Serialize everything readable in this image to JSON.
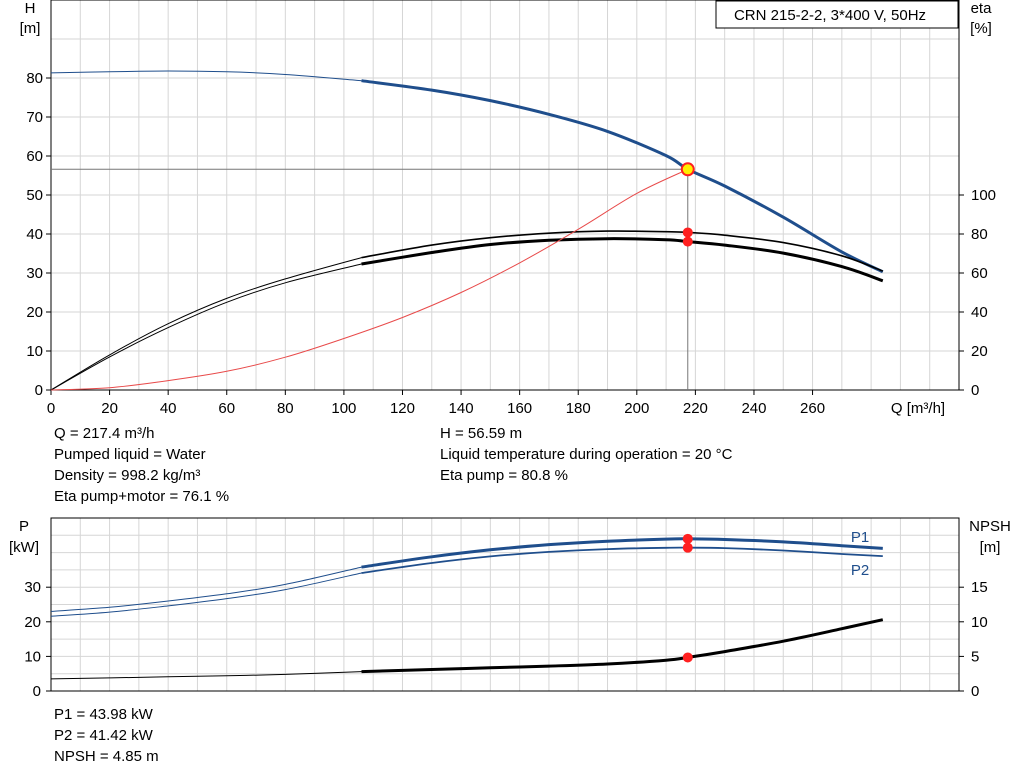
{
  "chart_data": [
    {
      "type": "line",
      "title": "CRN 215-2-2, 3*400 V, 50Hz",
      "x_axis": {
        "label": "Q [m³/h]",
        "range": [
          0,
          310
        ],
        "ticks": [
          "0",
          "20",
          "40",
          "60",
          "80",
          "100",
          "120",
          "140",
          "160",
          "180",
          "200",
          "220",
          "240",
          "260"
        ]
      },
      "y_left": {
        "label_line1": "H",
        "label_line2": "[m]",
        "range": [
          0,
          100
        ],
        "ticks": [
          "0",
          "10",
          "20",
          "30",
          "40",
          "50",
          "60",
          "70",
          "80"
        ]
      },
      "y_right": {
        "label_line1": "eta",
        "label_line2": "[%]",
        "range": [
          0,
          200
        ],
        "ticks": [
          "0",
          "20",
          "40",
          "60",
          "80",
          "100"
        ]
      },
      "grid": true,
      "series": [
        {
          "key": "H",
          "axis": "left",
          "color": "#1f4e8c",
          "x": [
            0,
            20,
            40,
            60,
            80,
            106,
            130,
            150,
            170,
            190,
            210,
            217.4,
            230,
            250,
            270,
            284
          ],
          "y": [
            81.3,
            81.6,
            81.8,
            81.6,
            80.9,
            79.3,
            76.9,
            74.2,
            70.7,
            66.3,
            60.1,
            56.59,
            52.3,
            44.3,
            35.4,
            30.3
          ]
        },
        {
          "key": "eta_pump",
          "axis": "right",
          "color": "#000000",
          "x": [
            0,
            20,
            40,
            60,
            80,
            106,
            130,
            150,
            170,
            190,
            210,
            217.4,
            230,
            250,
            270,
            284
          ],
          "y": [
            0,
            18,
            34,
            47,
            57,
            67.9,
            74.3,
            78.1,
            80.4,
            81.5,
            81.2,
            80.8,
            79.4,
            75.6,
            68.8,
            61
          ]
        },
        {
          "key": "eta_total",
          "axis": "right",
          "color": "#000000",
          "x": [
            0,
            20,
            40,
            60,
            80,
            106,
            130,
            150,
            170,
            190,
            210,
            217.4,
            230,
            250,
            270,
            284
          ],
          "y": [
            0,
            17,
            32,
            45,
            55,
            64.6,
            70.5,
            74.6,
            76.8,
            77.6,
            77.1,
            76.1,
            74.3,
            70.2,
            63.3,
            56
          ]
        },
        {
          "key": "system",
          "axis": "left",
          "color": "#e84a4a",
          "x": [
            0,
            20,
            40,
            60,
            80,
            100,
            120,
            140,
            160,
            180,
            200,
            217.4
          ],
          "y": [
            0,
            0.6,
            2.4,
            4.8,
            8.4,
            13.2,
            18.6,
            25,
            32.6,
            41.2,
            50.4,
            56.59
          ]
        }
      ],
      "operating_point": {
        "Q": 217.4,
        "H": 56.59,
        "eta_pump": 80.8,
        "eta_total": 76.1
      }
    },
    {
      "type": "line",
      "x_axis": {
        "range": [
          0,
          310
        ]
      },
      "y_left": {
        "label_line1": "P",
        "label_line2": "[kW]",
        "range": [
          0,
          50
        ],
        "ticks": [
          "0",
          "10",
          "20",
          "30"
        ]
      },
      "y_right": {
        "label_line1": "NPSH",
        "label_line2": "[m]",
        "range": [
          0,
          25
        ],
        "ticks": [
          "0",
          "5",
          "10",
          "15"
        ]
      },
      "grid": true,
      "series": [
        {
          "name": "P1",
          "axis": "left",
          "color": "#1f4e8c",
          "x": [
            0,
            20,
            40,
            60,
            80,
            106,
            130,
            150,
            170,
            190,
            210,
            217.4,
            230,
            250,
            270,
            284
          ],
          "y": [
            23,
            24.2,
            26,
            28.1,
            30.8,
            35.8,
            38.8,
            40.8,
            42.3,
            43.3,
            43.9,
            43.98,
            43.8,
            43.1,
            42,
            41.2
          ]
        },
        {
          "name": "P2",
          "axis": "left",
          "color": "#1f4e8c",
          "x": [
            0,
            20,
            40,
            60,
            80,
            106,
            130,
            150,
            170,
            190,
            210,
            217.4,
            230,
            250,
            270,
            284
          ],
          "y": [
            21.6,
            22.8,
            24.6,
            26.7,
            29.3,
            34.1,
            37,
            38.9,
            40.2,
            41,
            41.4,
            41.42,
            41.3,
            40.6,
            39.6,
            39
          ]
        },
        {
          "key": "NPSH",
          "axis": "right",
          "color": "#000000",
          "x": [
            0,
            20,
            40,
            60,
            80,
            106,
            130,
            150,
            170,
            190,
            210,
            217.4,
            230,
            250,
            270,
            284
          ],
          "y": [
            1.75,
            1.9,
            2.05,
            2.2,
            2.4,
            2.8,
            3.1,
            3.35,
            3.6,
            3.9,
            4.45,
            4.85,
            5.7,
            7.2,
            9,
            10.3
          ]
        }
      ],
      "operating_point": {
        "Q": 217.4,
        "P1": 43.98,
        "P2": 41.42,
        "NPSH": 4.85
      }
    }
  ],
  "info_top": {
    "q": "Q = 217.4 m³/h",
    "liquid": "Pumped liquid = Water",
    "density": "Density = 998.2 kg/m³",
    "eta_total": "Eta pump+motor = 76.1 %",
    "h": "H = 56.59 m",
    "temp": "Liquid temperature during operation = 20 °C",
    "eta_pump": "Eta pump = 80.8 %"
  },
  "info_bottom": {
    "p1": "P1 = 43.98 kW",
    "p2": "P2 = 41.42 kW",
    "npsh": "NPSH = 4.85 m"
  },
  "colors": {
    "curve_blue": "#1f4e8c",
    "op_point": "#ff2020",
    "op_point_h": "#ffee00",
    "system": "#e84a4a",
    "grid": "#d0d0d0"
  }
}
